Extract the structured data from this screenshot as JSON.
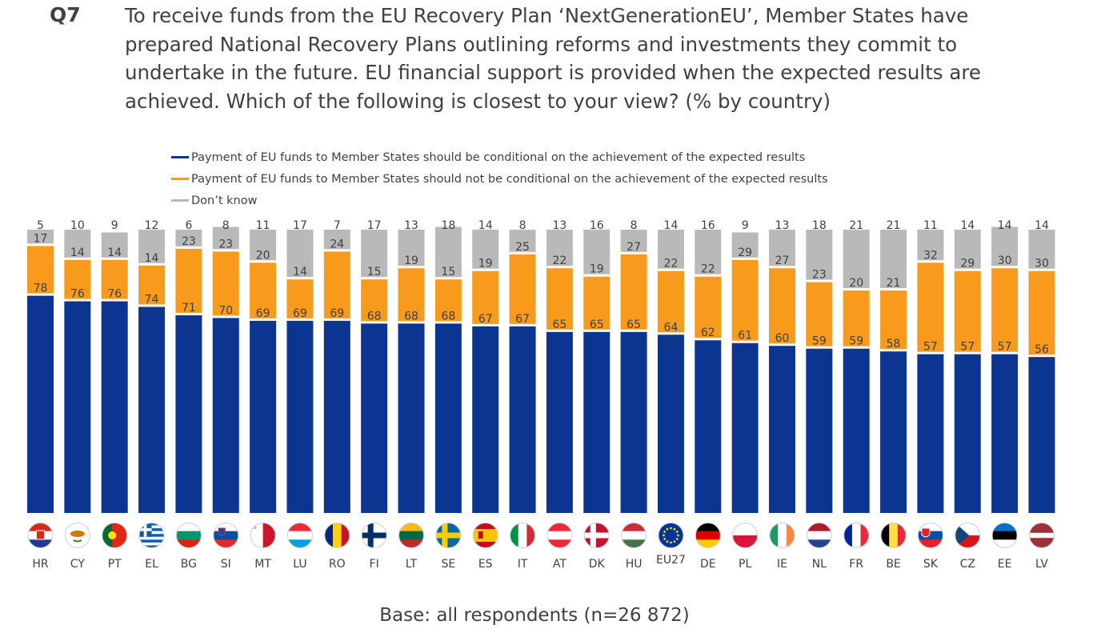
{
  "question": {
    "label": "Q7",
    "text": "To receive funds from the EU Recovery Plan ‘NextGenerationEU’, Member States have prepared National Recovery Plans outlining reforms and investments they commit to undertake in the future. EU financial support is provided when the expected results are achieved. Which of the following is closest to your view? (% by country)"
  },
  "base_note": "Base: all respondents (n=26 872)",
  "colors": {
    "conditional": "#0c3591",
    "not_conditional": "#f89a1c",
    "dont_know": "#b9b9b9"
  },
  "chart_data": {
    "type": "bar",
    "stacked": true,
    "title": "",
    "xlabel": "",
    "ylabel": "",
    "ylim": [
      0,
      100
    ],
    "grid": false,
    "legend_position": "top",
    "categories": [
      "HR",
      "CY",
      "PT",
      "EL",
      "BG",
      "SI",
      "MT",
      "LU",
      "RO",
      "FI",
      "LT",
      "SE",
      "ES",
      "IT",
      "AT",
      "DK",
      "HU",
      "EU27",
      "DE",
      "PL",
      "IE",
      "NL",
      "FR",
      "BE",
      "SK",
      "CZ",
      "EE",
      "LV"
    ],
    "series": [
      {
        "name": "Payment of EU funds to Member States should be conditional on the achievement of the expected results",
        "values": [
          78,
          76,
          76,
          74,
          71,
          70,
          69,
          69,
          69,
          68,
          68,
          68,
          67,
          67,
          65,
          65,
          65,
          64,
          62,
          61,
          60,
          59,
          59,
          58,
          57,
          57,
          57,
          56
        ]
      },
      {
        "name": "Payment of EU funds to Member States should not be conditional on the achievement of the expected results",
        "values": [
          17,
          14,
          14,
          14,
          23,
          23,
          20,
          14,
          24,
          15,
          19,
          15,
          19,
          25,
          22,
          19,
          27,
          22,
          22,
          29,
          27,
          23,
          20,
          21,
          32,
          29,
          30,
          30
        ]
      },
      {
        "name": "Don’t know",
        "values": [
          5,
          10,
          9,
          12,
          6,
          8,
          11,
          17,
          7,
          17,
          13,
          18,
          14,
          8,
          13,
          16,
          8,
          14,
          16,
          9,
          13,
          18,
          21,
          21,
          11,
          14,
          14,
          14
        ]
      }
    ]
  }
}
